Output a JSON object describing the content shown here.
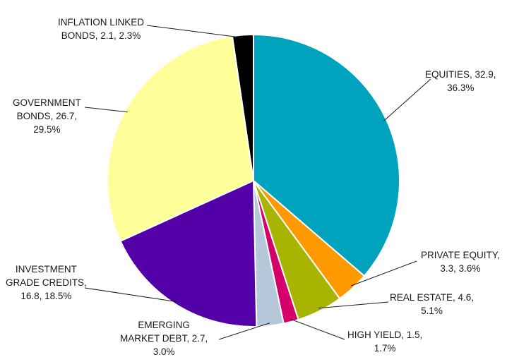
{
  "chart_data": {
    "type": "pie",
    "title": "",
    "start_angle_deg": 0,
    "direction": "clockwise",
    "slices": [
      {
        "name": "EQUITIES",
        "value": 32.9,
        "percent": 36.3,
        "color": "#00A3BE",
        "label_lines": [
          "EQUITIES, 32.9,",
          "36.3%"
        ]
      },
      {
        "name": "PRIVATE EQUITY",
        "value": 3.3,
        "percent": 3.6,
        "color": "#FF9900",
        "label_lines": [
          "PRIVATE EQUITY,",
          "3.3, 3.6%"
        ]
      },
      {
        "name": "REAL ESTATE",
        "value": 4.6,
        "percent": 5.1,
        "color": "#A8B400",
        "label_lines": [
          "REAL ESTATE, 4.6,",
          "5.1%"
        ]
      },
      {
        "name": "HIGH YIELD",
        "value": 1.5,
        "percent": 1.7,
        "color": "#D6006B",
        "label_lines": [
          "HIGH YIELD, 1.5,",
          "1.7%"
        ]
      },
      {
        "name": "EMERGING MARKET DEBT",
        "value": 2.7,
        "percent": 3.0,
        "color": "#B4C8DA",
        "label_lines": [
          "EMERGING",
          "MARKET DEBT, 2.7,",
          "3.0%"
        ]
      },
      {
        "name": "INVESTMENT GRADE CREDITS",
        "value": 16.8,
        "percent": 18.5,
        "color": "#5300A8",
        "label_lines": [
          "INVESTMENT",
          "GRADE CREDITS,",
          "16.8, 18.5%"
        ]
      },
      {
        "name": "GOVERNMENT BONDS",
        "value": 26.7,
        "percent": 29.5,
        "color": "#FFFF99",
        "label_lines": [
          "GOVERNMENT",
          "BONDS, 26.7,",
          "29.5%"
        ]
      },
      {
        "name": "INFLATION LINKED BONDS",
        "value": 2.1,
        "percent": 2.3,
        "color": "#000000",
        "label_lines": [
          "INFLATION LINKED",
          "BONDS, 2.1, 2.3%"
        ]
      }
    ]
  }
}
